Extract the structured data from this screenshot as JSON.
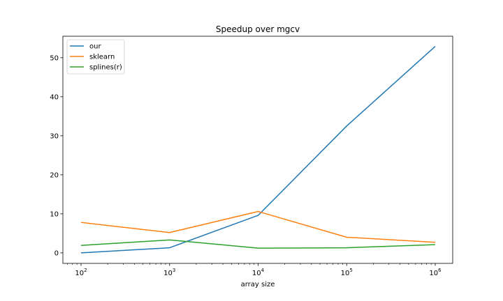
{
  "chart_data": {
    "type": "line",
    "title": "Speedup over mgcv",
    "xlabel": "array size",
    "ylabel": "",
    "x_scale": "log",
    "x": [
      100,
      1000,
      10000,
      100000,
      1000000
    ],
    "x_tick_labels": [
      {
        "value": 100,
        "base": "10",
        "exp": "2"
      },
      {
        "value": 1000,
        "base": "10",
        "exp": "3"
      },
      {
        "value": 10000,
        "base": "10",
        "exp": "4"
      },
      {
        "value": 100000,
        "base": "10",
        "exp": "5"
      },
      {
        "value": 1000000,
        "base": "10",
        "exp": "6"
      }
    ],
    "y_ticks": [
      0,
      10,
      20,
      30,
      40,
      50
    ],
    "ylim": [
      -2.7,
      55.5
    ],
    "grid": false,
    "legend_position": "top-left",
    "series": [
      {
        "name": "our",
        "color": "#1f77b4",
        "values": [
          0.0,
          1.3,
          9.6,
          32.5,
          52.9
        ]
      },
      {
        "name": "sklearn",
        "color": "#ff7f0e",
        "values": [
          7.8,
          5.2,
          10.6,
          4.0,
          2.7
        ]
      },
      {
        "name": "splines(r)",
        "color": "#2ca02c",
        "values": [
          1.9,
          3.3,
          1.2,
          1.3,
          2.1
        ]
      }
    ]
  }
}
